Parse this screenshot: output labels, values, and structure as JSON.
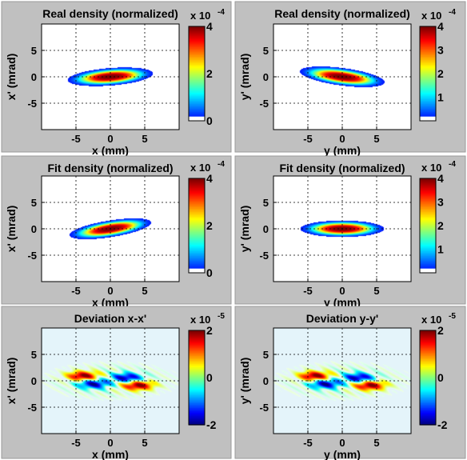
{
  "figure": {
    "background": "#c0c0c0",
    "plot_background": "#ffffff",
    "colormap": "jet"
  },
  "chart_data": [
    {
      "type": "heatmap",
      "title": "Real density (normalized)",
      "xlabel": "x (mm)",
      "ylabel": "x' (mrad)",
      "xlim": [
        -10,
        10
      ],
      "ylim": [
        -10,
        10
      ],
      "xticks": [
        -5,
        0,
        5
      ],
      "yticks": [
        -5,
        0,
        5
      ],
      "grid": true,
      "colorbar": {
        "exponent": "x 10",
        "power": "-4",
        "min": 0,
        "max": 4,
        "ticks": [
          0,
          2,
          4
        ],
        "low_color": "#ffffff"
      },
      "distribution": {
        "kind": "density",
        "center_x": 0,
        "center_y": 0,
        "sigma_x": 3.4,
        "sigma_y": 0.9,
        "rotation_deg": 6,
        "peak": 4
      },
      "peak_value": 4
    },
    {
      "type": "heatmap",
      "title": "Real density (normalized)",
      "xlabel": "y (mm)",
      "ylabel": "y' (mrad)",
      "xlim": [
        -10,
        10
      ],
      "ylim": [
        -10,
        10
      ],
      "xticks": [
        -5,
        0,
        5
      ],
      "yticks": [
        -5,
        0,
        5
      ],
      "grid": true,
      "colorbar": {
        "exponent": "x 10",
        "power": "-4",
        "min": 0,
        "max": 4,
        "ticks": [
          1,
          2,
          3,
          4
        ],
        "low_color": "#ffffff"
      },
      "distribution": {
        "kind": "density",
        "center_x": 0,
        "center_y": 0,
        "sigma_x": 3.4,
        "sigma_y": 0.9,
        "rotation_deg": -10,
        "peak": 4
      },
      "peak_value": 4
    },
    {
      "type": "heatmap",
      "title": "Fit density (normalized)",
      "xlabel": "x (mm)",
      "ylabel": "x' (mrad)",
      "xlim": [
        -10,
        10
      ],
      "ylim": [
        -10,
        10
      ],
      "xticks": [
        -5,
        0,
        5
      ],
      "yticks": [
        -5,
        0,
        5
      ],
      "grid": true,
      "colorbar": {
        "exponent": "x 10",
        "power": "-4",
        "min": 0,
        "max": 4,
        "ticks": [
          0,
          2,
          4
        ],
        "low_color": "#ffffff"
      },
      "distribution": {
        "kind": "density",
        "center_x": 0,
        "center_y": 0,
        "sigma_x": 3.3,
        "sigma_y": 0.85,
        "rotation_deg": 12,
        "peak": 4
      },
      "peak_value": 4
    },
    {
      "type": "heatmap",
      "title": "Fit density (normalized)",
      "xlabel": "y (mm)",
      "ylabel": "y' (mrad)",
      "xlim": [
        -10,
        10
      ],
      "ylim": [
        -10,
        10
      ],
      "xticks": [
        -5,
        0,
        5
      ],
      "yticks": [
        -5,
        0,
        5
      ],
      "grid": true,
      "colorbar": {
        "exponent": "x 10",
        "power": "-4",
        "min": 0,
        "max": 4,
        "ticks": [
          1,
          2,
          3,
          4
        ],
        "low_color": "#ffffff"
      },
      "distribution": {
        "kind": "density",
        "center_x": 0,
        "center_y": 0,
        "sigma_x": 3.3,
        "sigma_y": 0.85,
        "rotation_deg": 0,
        "peak": 4
      },
      "peak_value": 4
    },
    {
      "type": "heatmap",
      "title": "Deviation x-x'",
      "xlabel": "x (mm)",
      "ylabel": "x' (mrad)",
      "xlim": [
        -10,
        10
      ],
      "ylim": [
        -10,
        10
      ],
      "xticks": [
        -5,
        0,
        5
      ],
      "yticks": [
        -5,
        0,
        5
      ],
      "grid": true,
      "colorbar": {
        "exponent": "x 10",
        "power": "-5",
        "min": -2,
        "max": 2,
        "ticks": [
          -2,
          0,
          2
        ]
      },
      "distribution": {
        "kind": "deviation",
        "lobe_offset": 4,
        "lobe_tilt": 0.22,
        "peak": 2
      },
      "peak_value": 2
    },
    {
      "type": "heatmap",
      "title": "Deviation y-y'",
      "xlabel": "y (mm)",
      "ylabel": "y' (mrad)",
      "xlim": [
        -10,
        10
      ],
      "ylim": [
        -10,
        10
      ],
      "xticks": [
        -5,
        0,
        5
      ],
      "yticks": [
        -5,
        0,
        5
      ],
      "grid": true,
      "colorbar": {
        "exponent": "x 10",
        "power": "-5",
        "min": -2,
        "max": 2,
        "ticks": [
          -2,
          0,
          2
        ]
      },
      "distribution": {
        "kind": "deviation",
        "lobe_offset": 4,
        "lobe_tilt": 0.28,
        "peak": 2
      },
      "peak_value": 2
    }
  ]
}
